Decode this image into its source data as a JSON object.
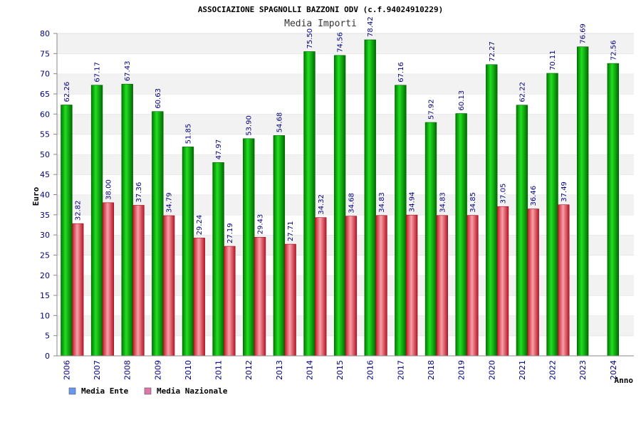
{
  "chart_data": {
    "type": "bar",
    "title": "ASSOCIAZIONE SPAGNOLLI BAZZONI ODV (c.f.94024910229)",
    "subtitle": "Media Importi",
    "xlabel": "Anno",
    "ylabel": "Euro",
    "ylim": [
      0,
      80
    ],
    "yticks": [
      0,
      5,
      10,
      15,
      20,
      25,
      30,
      35,
      40,
      45,
      50,
      55,
      60,
      65,
      70,
      75,
      80
    ],
    "ytick_labels": [
      "0",
      "5",
      "10",
      "15",
      "20",
      "25",
      "30",
      "35",
      "40",
      "45",
      "50",
      "55",
      "60",
      "65",
      "70",
      "75",
      "80"
    ],
    "grid": "horizontal-bands",
    "legend_position": "bottom-left",
    "categories": [
      "2006",
      "2007",
      "2008",
      "2009",
      "2010",
      "2011",
      "2012",
      "2013",
      "2014",
      "2015",
      "2016",
      "2017",
      "2018",
      "2019",
      "2020",
      "2021",
      "2022",
      "2023",
      "2024"
    ],
    "series": [
      {
        "name": "Media Ente",
        "color": "#00a000",
        "legend_color": "#6699ee",
        "values": [
          62.26,
          67.17,
          67.43,
          60.63,
          51.85,
          47.97,
          53.9,
          54.68,
          75.5,
          74.56,
          78.42,
          67.16,
          57.92,
          60.13,
          72.27,
          62.22,
          70.11,
          76.69,
          72.56
        ],
        "labels": [
          "62.26",
          "67.17",
          "67.43",
          "60.63",
          "51.85",
          "47.97",
          "53.90",
          "54.68",
          "75.50",
          "74.56",
          "78.42",
          "67.16",
          "57.92",
          "60.13",
          "72.27",
          "62.22",
          "70.11",
          "76.69",
          "72.56"
        ]
      },
      {
        "name": "Media Nazionale",
        "color": "#e03040",
        "legend_color": "#dd77aa",
        "values": [
          32.82,
          38.0,
          37.36,
          34.79,
          29.24,
          27.19,
          29.43,
          27.71,
          34.32,
          34.68,
          34.83,
          34.94,
          34.83,
          34.85,
          37.05,
          36.46,
          37.49,
          null,
          null
        ],
        "labels": [
          "32.82",
          "38.00",
          "37.36",
          "34.79",
          "29.24",
          "27.19",
          "29.43",
          "27.71",
          "34.32",
          "34.68",
          "34.83",
          "34.94",
          "34.83",
          "34.85",
          "37.05",
          "36.46",
          "37.49",
          null,
          null
        ]
      }
    ]
  }
}
